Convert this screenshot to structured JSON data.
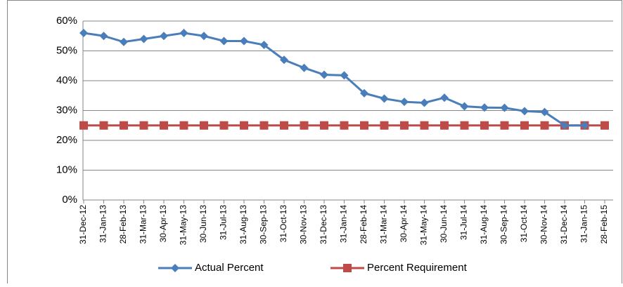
{
  "chart_data": {
    "type": "line",
    "categories": [
      "31-Dec-12",
      "31-Jan-13",
      "28-Feb-13",
      "31-Mar-13",
      "30-Apr-13",
      "31-May-13",
      "30-Jun-13",
      "31-Jul-13",
      "31-Aug-13",
      "30-Sep-13",
      "31-Oct-13",
      "30-Nov-13",
      "31-Dec-13",
      "31-Jan-14",
      "28-Feb-14",
      "31-Mar-14",
      "30-Apr-14",
      "31-May-14",
      "30-Jun-14",
      "31-Jul-14",
      "31-Aug-14",
      "30-Sep-14",
      "31-Oct-14",
      "30-Nov-14",
      "31-Dec-14",
      "31-Jan-15",
      "28-Feb-15"
    ],
    "series": [
      {
        "name": "Actual Percent",
        "color": "#4a7ebb",
        "marker": "diamond",
        "values": [
          56,
          55,
          53,
          54,
          55,
          56,
          55,
          53.3,
          53.3,
          52,
          47,
          44.3,
          42,
          41.8,
          35.8,
          34,
          32.9,
          32.6,
          34.3,
          31.4,
          31,
          30.9,
          29.8,
          29.5,
          25,
          25,
          null
        ]
      },
      {
        "name": "Percent Requirement",
        "color": "#be4b48",
        "marker": "square",
        "values": [
          25,
          25,
          25,
          25,
          25,
          25,
          25,
          25,
          25,
          25,
          25,
          25,
          25,
          25,
          25,
          25,
          25,
          25,
          25,
          25,
          25,
          25,
          25,
          25,
          25,
          25,
          25
        ]
      }
    ],
    "ylim": [
      0,
      60
    ],
    "yticks": [
      {
        "value": 0,
        "label": "0%"
      },
      {
        "value": 10,
        "label": "10%"
      },
      {
        "value": 20,
        "label": "20%"
      },
      {
        "value": 30,
        "label": "30%"
      },
      {
        "value": 40,
        "label": "40%"
      },
      {
        "value": 50,
        "label": "50%"
      },
      {
        "value": 60,
        "label": "60%"
      }
    ],
    "grid": true,
    "legend": "bottom"
  }
}
